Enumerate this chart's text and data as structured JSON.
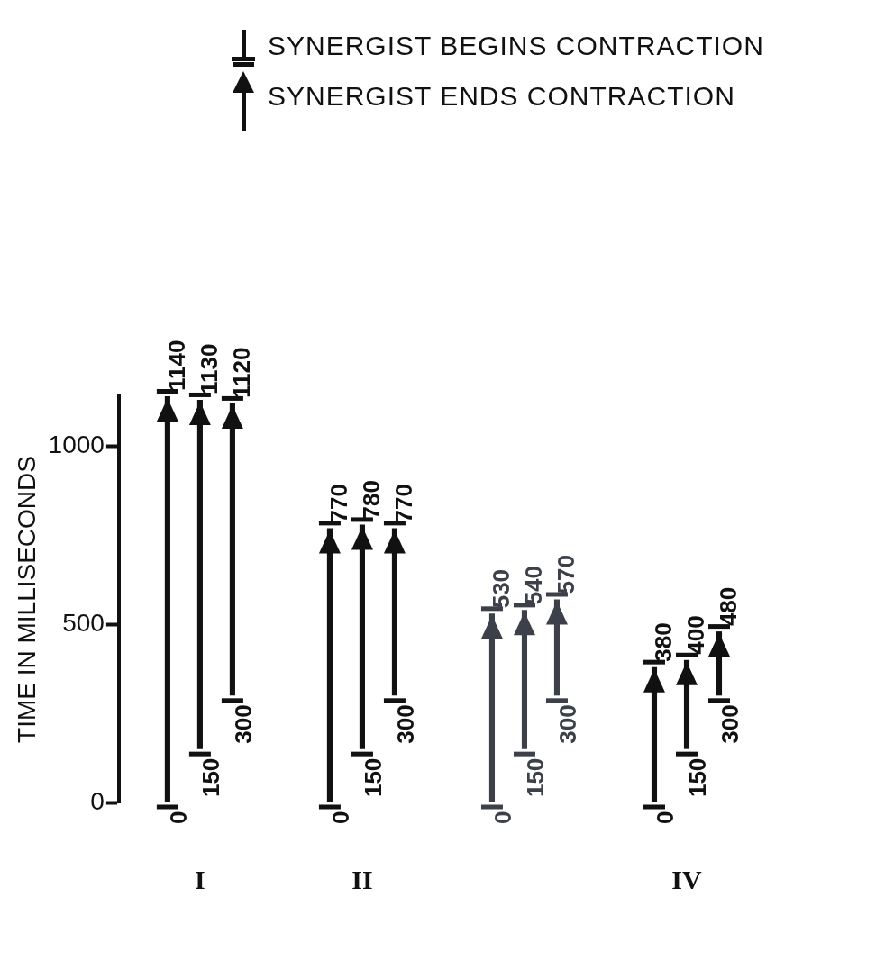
{
  "chart_data": {
    "type": "bar",
    "ylabel": "TIME IN MILLISECONDS",
    "categories": [
      "I",
      "II",
      null,
      "IV"
    ],
    "series": [
      {
        "base": [
          0,
          0,
          0,
          0
        ],
        "values": [
          1140,
          770,
          530,
          380
        ],
        "colors": [
          "#111111",
          "#111111",
          "#3c4049",
          "#111111"
        ]
      },
      {
        "base": [
          150,
          150,
          150,
          150
        ],
        "values": [
          980,
          630,
          390,
          250
        ],
        "colors": [
          "#111111",
          "#111111",
          "#3c4049",
          "#111111"
        ]
      },
      {
        "base": [
          300,
          300,
          300,
          300
        ],
        "values": [
          820,
          470,
          270,
          180
        ],
        "colors": [
          "#111111",
          "#111111",
          "#3c4049",
          "#111111"
        ]
      }
    ],
    "ylim": [
      0,
      1140
    ],
    "yticks": [
      0,
      500,
      1000
    ],
    "grid": false,
    "annotations": [
      "SYNERGIST BEGINS CONTRACTION",
      "SYNERGIST ENDS CONTRACTION",
      "1140",
      "1130",
      "1120",
      "770",
      "780",
      "770",
      "530",
      "540",
      "570",
      "380",
      "400",
      "480",
      "0",
      "150",
      "300",
      "0",
      "150",
      "300",
      "0",
      "150",
      "300",
      "0",
      "150",
      "300"
    ]
  }
}
